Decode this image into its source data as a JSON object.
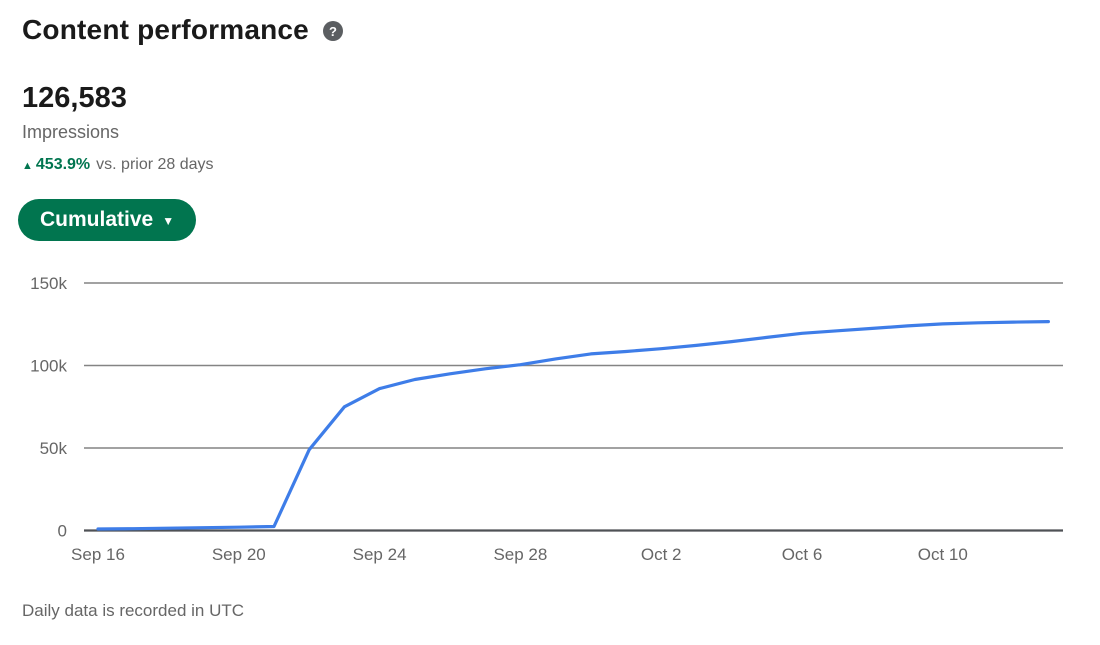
{
  "header": {
    "title": "Content performance",
    "help_icon_glyph": "?"
  },
  "metric": {
    "value": "126,583",
    "label": "Impressions",
    "change_arrow": "▲",
    "change_percent": "453.9%",
    "change_context": "vs. prior 28 days"
  },
  "controls": {
    "view_selector_label": "Cumulative",
    "view_selector_caret": "▼"
  },
  "chart_data": {
    "type": "line",
    "series_name": "Impressions (cumulative)",
    "categories": [
      "Sep 16",
      "Sep 17",
      "Sep 18",
      "Sep 19",
      "Sep 20",
      "Sep 21",
      "Sep 22",
      "Sep 23",
      "Sep 24",
      "Sep 25",
      "Sep 26",
      "Sep 27",
      "Sep 28",
      "Sep 29",
      "Sep 30",
      "Oct 1",
      "Oct 2",
      "Oct 3",
      "Oct 4",
      "Oct 5",
      "Oct 6",
      "Oct 7",
      "Oct 8",
      "Oct 9",
      "Oct 10",
      "Oct 11",
      "Oct 12",
      "Oct 13"
    ],
    "values": [
      900,
      1100,
      1400,
      1700,
      2000,
      2400,
      49000,
      75000,
      86000,
      91500,
      95000,
      98000,
      100500,
      104000,
      107000,
      108500,
      110200,
      112200,
      114500,
      117000,
      119500,
      121000,
      122500,
      124000,
      125200,
      125900,
      126300,
      126583
    ],
    "ylim": [
      0,
      150000
    ],
    "yticks": [
      {
        "value": 0,
        "label": "0"
      },
      {
        "value": 50000,
        "label": "50k"
      },
      {
        "value": 100000,
        "label": "100k"
      },
      {
        "value": 150000,
        "label": "150k"
      }
    ],
    "xticks": [
      {
        "index": 0,
        "label": "Sep 16"
      },
      {
        "index": 4,
        "label": "Sep 20"
      },
      {
        "index": 8,
        "label": "Sep 24"
      },
      {
        "index": 12,
        "label": "Sep 28"
      },
      {
        "index": 16,
        "label": "Oct 2"
      },
      {
        "index": 20,
        "label": "Oct 6"
      },
      {
        "index": 24,
        "label": "Oct 10"
      }
    ],
    "grid": "horizontal",
    "legend": "none"
  },
  "footer": {
    "note": "Daily data is recorded in UTC"
  },
  "colors": {
    "accent_green": "#01754F",
    "line_blue": "#3E7DE8",
    "grid_line": "#848484",
    "axis_line": "#4F5256",
    "text_primary": "#1A1A1A",
    "text_secondary": "#666666",
    "help_icon_bg": "#5B5E61"
  }
}
